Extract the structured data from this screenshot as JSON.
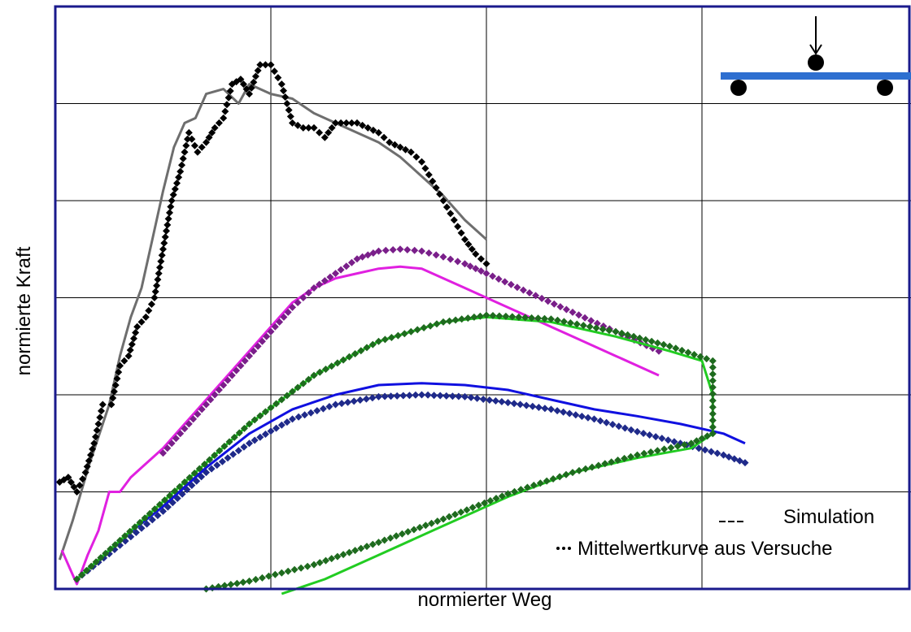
{
  "chart_data": {
    "type": "line",
    "title": "",
    "xlabel": "normierter Weg",
    "ylabel": "normierte Kraft",
    "xlim": [
      0,
      4
    ],
    "ylim": [
      0,
      6
    ],
    "grid": true,
    "tick_labels_shown": false,
    "legend": {
      "placement": "bottom-right",
      "entries": [
        {
          "symbol": "---",
          "label": "Simulation"
        },
        {
          "symbol": "···",
          "label": "Mittelwertkurve aus Versuche"
        }
      ]
    },
    "inset": {
      "description": "three-point bending schematic: beam with central load arrow and two supports",
      "beam_color": "#2E6FD0"
    },
    "series": [
      {
        "kind": "simulation",
        "color": "#6E6E6E",
        "x": [
          0.02,
          0.08,
          0.16,
          0.25,
          0.3,
          0.35,
          0.4,
          0.45,
          0.5,
          0.55,
          0.6,
          0.65,
          0.7,
          0.78,
          0.85,
          0.9,
          1.0,
          1.1,
          1.2,
          1.35,
          1.5,
          1.6,
          1.7,
          1.8,
          1.9,
          2.0
        ],
        "y": [
          0.3,
          0.7,
          1.3,
          1.9,
          2.4,
          2.8,
          3.1,
          3.6,
          4.1,
          4.55,
          4.8,
          4.85,
          5.1,
          5.15,
          5.0,
          5.2,
          5.1,
          5.05,
          4.9,
          4.75,
          4.6,
          4.45,
          4.25,
          4.05,
          3.8,
          3.6
        ]
      },
      {
        "kind": "experiment",
        "color": "#000000",
        "x": [
          0.02,
          0.06,
          0.1,
          0.14,
          0.18,
          0.22,
          0.26,
          0.3,
          0.34,
          0.38,
          0.42,
          0.46,
          0.5,
          0.54,
          0.58,
          0.62,
          0.66,
          0.7,
          0.74,
          0.78,
          0.82,
          0.86,
          0.9,
          0.95,
          1.0,
          1.05,
          1.1,
          1.15,
          1.2,
          1.25,
          1.3,
          1.35,
          1.4,
          1.45,
          1.5,
          1.55,
          1.6,
          1.65,
          1.7,
          1.75,
          1.8,
          1.85,
          1.9,
          1.95,
          2.0
        ],
        "y": [
          1.1,
          1.15,
          1.0,
          1.2,
          1.5,
          1.9,
          1.9,
          2.3,
          2.4,
          2.7,
          2.8,
          3.0,
          3.5,
          4.0,
          4.3,
          4.7,
          4.5,
          4.6,
          4.75,
          4.85,
          5.2,
          5.25,
          5.1,
          5.4,
          5.4,
          5.2,
          4.8,
          4.75,
          4.75,
          4.65,
          4.8,
          4.8,
          4.8,
          4.75,
          4.7,
          4.6,
          4.55,
          4.5,
          4.4,
          4.2,
          4.0,
          3.8,
          3.6,
          3.45,
          3.35
        ]
      },
      {
        "kind": "simulation",
        "color": "#E020E0",
        "x": [
          0.03,
          0.07,
          0.1,
          0.15,
          0.2,
          0.25,
          0.3,
          0.35,
          0.4,
          0.5,
          0.6,
          0.7,
          0.8,
          0.9,
          1.0,
          1.1,
          1.2,
          1.3,
          1.4,
          1.5,
          1.6,
          1.7,
          1.8,
          1.9,
          2.0,
          2.2,
          2.4,
          2.6,
          2.8
        ],
        "y": [
          0.4,
          0.2,
          0.05,
          0.35,
          0.6,
          1.0,
          1.0,
          1.15,
          1.25,
          1.45,
          1.7,
          1.95,
          2.2,
          2.45,
          2.7,
          2.95,
          3.1,
          3.2,
          3.25,
          3.3,
          3.32,
          3.3,
          3.2,
          3.1,
          3.0,
          2.8,
          2.6,
          2.4,
          2.2
        ]
      },
      {
        "kind": "experiment",
        "color": "#7A1F8A",
        "x": [
          0.5,
          0.6,
          0.7,
          0.8,
          0.9,
          1.0,
          1.1,
          1.2,
          1.3,
          1.4,
          1.5,
          1.6,
          1.7,
          1.8,
          1.9,
          2.0,
          2.2,
          2.4,
          2.6,
          2.8
        ],
        "y": [
          1.4,
          1.65,
          1.9,
          2.15,
          2.4,
          2.65,
          2.9,
          3.1,
          3.25,
          3.4,
          3.48,
          3.5,
          3.48,
          3.42,
          3.35,
          3.25,
          3.05,
          2.85,
          2.65,
          2.45
        ]
      },
      {
        "kind": "simulation",
        "color": "#1010E0",
        "x": [
          0.1,
          0.3,
          0.5,
          0.7,
          0.9,
          1.1,
          1.3,
          1.5,
          1.7,
          1.9,
          2.1,
          2.3,
          2.5,
          2.7,
          2.9,
          3.1,
          3.2
        ],
        "y": [
          0.1,
          0.5,
          0.85,
          1.25,
          1.6,
          1.85,
          2.0,
          2.1,
          2.12,
          2.1,
          2.05,
          1.95,
          1.85,
          1.78,
          1.7,
          1.6,
          1.5
        ]
      },
      {
        "kind": "experiment",
        "color": "#1F2A8A",
        "x": [
          0.1,
          0.3,
          0.5,
          0.7,
          0.9,
          1.1,
          1.3,
          1.5,
          1.7,
          1.9,
          2.1,
          2.3,
          2.5,
          2.7,
          2.9,
          3.1,
          3.2
        ],
        "y": [
          0.1,
          0.45,
          0.8,
          1.2,
          1.5,
          1.75,
          1.9,
          1.98,
          2.0,
          1.98,
          1.92,
          1.85,
          1.75,
          1.62,
          1.5,
          1.38,
          1.3
        ]
      },
      {
        "kind": "simulation",
        "color": "#22CC22",
        "x": [
          0.1,
          0.3,
          0.6,
          0.9,
          1.2,
          1.5,
          1.8,
          2.0,
          2.3,
          2.6,
          2.85,
          3.0,
          3.05,
          3.05,
          2.95,
          2.7,
          2.4,
          2.1,
          1.8,
          1.5,
          1.25,
          1.05
        ],
        "y": [
          0.1,
          0.5,
          1.1,
          1.7,
          2.2,
          2.55,
          2.75,
          2.8,
          2.75,
          2.6,
          2.45,
          2.35,
          2.0,
          1.6,
          1.45,
          1.35,
          1.2,
          0.95,
          0.65,
          0.35,
          0.1,
          -0.05
        ],
        "note": "loading and unloading path"
      },
      {
        "kind": "experiment",
        "color": "#1E6B1E",
        "x": [
          0.1,
          0.3,
          0.6,
          0.9,
          1.2,
          1.5,
          1.8,
          2.0,
          2.3,
          2.6,
          2.85,
          3.05,
          3.05,
          2.95,
          2.7,
          2.4,
          2.1,
          1.8,
          1.5,
          1.2,
          0.9,
          0.7
        ],
        "y": [
          0.1,
          0.5,
          1.1,
          1.7,
          2.2,
          2.55,
          2.75,
          2.82,
          2.78,
          2.65,
          2.5,
          2.35,
          1.6,
          1.5,
          1.38,
          1.2,
          0.98,
          0.72,
          0.48,
          0.25,
          0.08,
          0.0
        ],
        "note": "loading and unloading path"
      }
    ]
  }
}
